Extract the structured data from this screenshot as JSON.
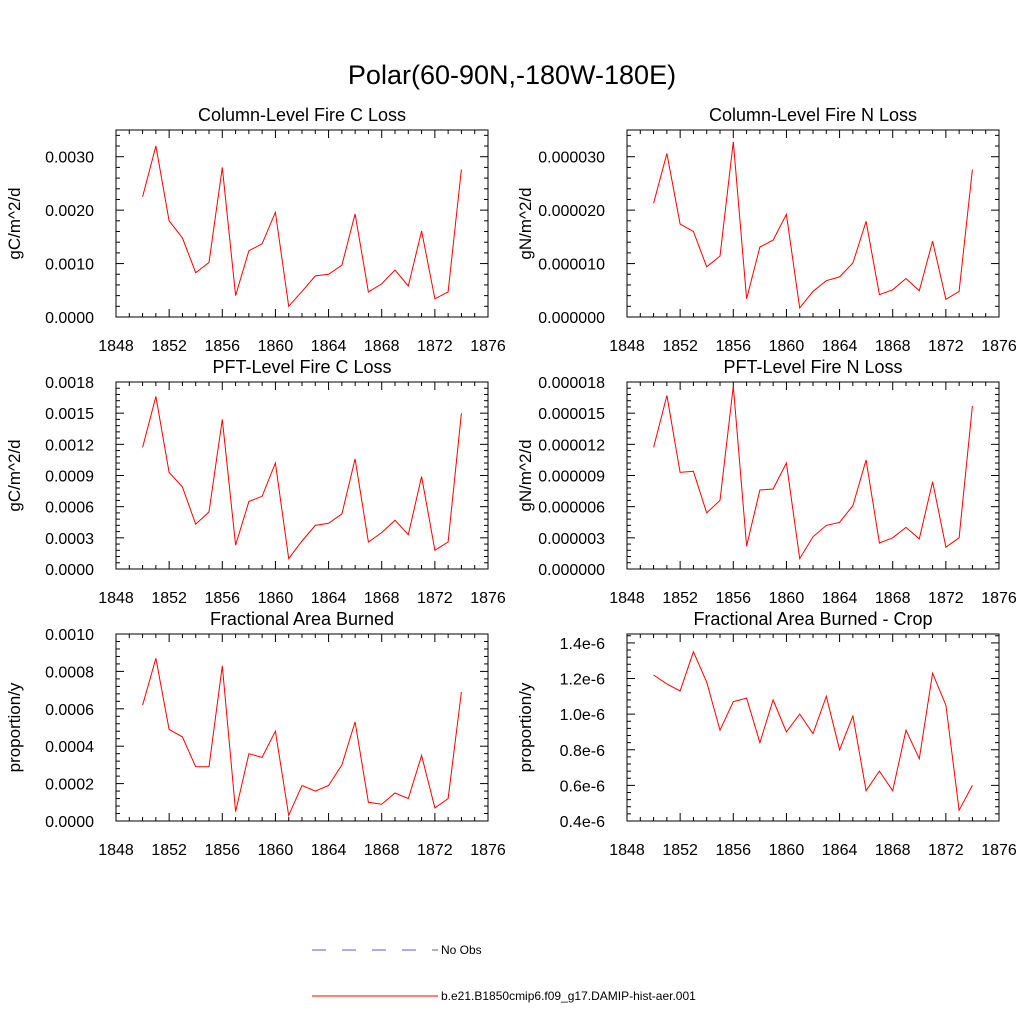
{
  "figure": {
    "title": "Polar(60-90N,-180W-180E)"
  },
  "legend": [
    {
      "label": "No Obs",
      "color": "#5b5bd6",
      "dash": true
    },
    {
      "label": "b.e21.B1850cmip6.f09_g17.DAMIP-hist-aer.001",
      "color": "#ff0000",
      "dash": false
    }
  ],
  "chart_data": [
    {
      "type": "line",
      "title": "Column-Level Fire C Loss",
      "ylabel": "gC/m^2/d",
      "xlim": [
        1848,
        1876
      ],
      "xticks": [
        1848,
        1852,
        1856,
        1860,
        1864,
        1868,
        1872,
        1876
      ],
      "xtick_labels": [
        "1848",
        "1852",
        "1856",
        "1860",
        "1864",
        "1868",
        "1872",
        "1876"
      ],
      "ylim": [
        0,
        0.0035
      ],
      "yticks": [
        0,
        0.001,
        0.002,
        0.003
      ],
      "ytick_labels": [
        "0.0000",
        "0.0010",
        "0.0020",
        "0.0030"
      ],
      "x": [
        1850,
        1851,
        1852,
        1853,
        1854,
        1855,
        1856,
        1857,
        1858,
        1859,
        1860,
        1861,
        1862,
        1863,
        1864,
        1865,
        1866,
        1867,
        1868,
        1869,
        1870,
        1871,
        1872,
        1873,
        1874
      ],
      "series": [
        {
          "color": "#ff0000",
          "values": [
            0.00225,
            0.0032,
            0.0018,
            0.00148,
            0.00083,
            0.00102,
            0.0028,
            0.0004,
            0.00124,
            0.00137,
            0.00196,
            0.0002,
            0.00048,
            0.00077,
            0.0008,
            0.00097,
            0.00193,
            0.00047,
            0.00062,
            0.00088,
            0.00058,
            0.00161,
            0.00034,
            0.00047,
            0.00276
          ]
        }
      ]
    },
    {
      "type": "line",
      "title": "Column-Level Fire N Loss",
      "ylabel": "gN/m^2/d",
      "xlim": [
        1848,
        1876
      ],
      "xticks": [
        1848,
        1852,
        1856,
        1860,
        1864,
        1868,
        1872,
        1876
      ],
      "xtick_labels": [
        "1848",
        "1852",
        "1856",
        "1860",
        "1864",
        "1868",
        "1872",
        "1876"
      ],
      "ylim": [
        0,
        3.5e-05
      ],
      "yticks": [
        0,
        1e-05,
        2e-05,
        3e-05
      ],
      "ytick_labels": [
        "0.000000",
        "0.000010",
        "0.000020",
        "0.000030"
      ],
      "x": [
        1850,
        1851,
        1852,
        1853,
        1854,
        1855,
        1856,
        1857,
        1858,
        1859,
        1860,
        1861,
        1862,
        1863,
        1864,
        1865,
        1866,
        1867,
        1868,
        1869,
        1870,
        1871,
        1872,
        1873,
        1874
      ],
      "series": [
        {
          "color": "#ff0000",
          "values": [
            2.13e-05,
            3.06e-05,
            1.74e-05,
            1.6e-05,
            9.4e-06,
            1.14e-05,
            3.28e-05,
            3.4e-06,
            1.31e-05,
            1.44e-05,
            1.92e-05,
            1.7e-06,
            4.8e-06,
            6.8e-06,
            7.5e-06,
            1.01e-05,
            1.79e-05,
            4.2e-06,
            5.1e-06,
            7.2e-06,
            4.9e-06,
            1.42e-05,
            3.3e-06,
            4.8e-06,
            2.76e-05
          ]
        }
      ]
    },
    {
      "type": "line",
      "title": "PFT-Level Fire C Loss",
      "ylabel": "gC/m^2/d",
      "xlim": [
        1848,
        1876
      ],
      "xticks": [
        1848,
        1852,
        1856,
        1860,
        1864,
        1868,
        1872,
        1876
      ],
      "xtick_labels": [
        "1848",
        "1852",
        "1856",
        "1860",
        "1864",
        "1868",
        "1872",
        "1876"
      ],
      "ylim": [
        0,
        0.0018
      ],
      "yticks": [
        0,
        0.0003,
        0.0006,
        0.0009,
        0.0012,
        0.0015,
        0.0018
      ],
      "ytick_labels": [
        "0.0000",
        "0.0003",
        "0.0006",
        "0.0009",
        "0.0012",
        "0.0015",
        "0.0018"
      ],
      "x": [
        1850,
        1851,
        1852,
        1853,
        1854,
        1855,
        1856,
        1857,
        1858,
        1859,
        1860,
        1861,
        1862,
        1863,
        1864,
        1865,
        1866,
        1867,
        1868,
        1869,
        1870,
        1871,
        1872,
        1873,
        1874
      ],
      "series": [
        {
          "color": "#ff0000",
          "values": [
            0.00117,
            0.00166,
            0.00093,
            0.00079,
            0.00043,
            0.00055,
            0.00144,
            0.00023,
            0.00065,
            0.0007,
            0.00102,
            0.0001,
            0.00027,
            0.00042,
            0.00044,
            0.00053,
            0.00106,
            0.00026,
            0.00035,
            0.00047,
            0.00033,
            0.00089,
            0.00018,
            0.00026,
            0.0015
          ]
        }
      ]
    },
    {
      "type": "line",
      "title": "PFT-Level Fire N Loss",
      "ylabel": "gN/m^2/d",
      "xlim": [
        1848,
        1876
      ],
      "xticks": [
        1848,
        1852,
        1856,
        1860,
        1864,
        1868,
        1872,
        1876
      ],
      "xtick_labels": [
        "1848",
        "1852",
        "1856",
        "1860",
        "1864",
        "1868",
        "1872",
        "1876"
      ],
      "ylim": [
        0,
        1.8e-05
      ],
      "yticks": [
        0,
        3e-06,
        6e-06,
        9e-06,
        1.2e-05,
        1.5e-05,
        1.8e-05
      ],
      "ytick_labels": [
        "0.000000",
        "0.000003",
        "0.000006",
        "0.000009",
        "0.000012",
        "0.000015",
        "0.000018"
      ],
      "x": [
        1850,
        1851,
        1852,
        1853,
        1854,
        1855,
        1856,
        1857,
        1858,
        1859,
        1860,
        1861,
        1862,
        1863,
        1864,
        1865,
        1866,
        1867,
        1868,
        1869,
        1870,
        1871,
        1872,
        1873,
        1874
      ],
      "series": [
        {
          "color": "#ff0000",
          "values": [
            1.17e-05,
            1.67e-05,
            9.3e-06,
            9.4e-06,
            5.4e-06,
            6.6e-06,
            1.76e-05,
            2.2e-06,
            7.6e-06,
            7.7e-06,
            1.02e-05,
            1e-06,
            3.1e-06,
            4.2e-06,
            4.5e-06,
            6.1e-06,
            1.05e-05,
            2.5e-06,
            3e-06,
            4e-06,
            2.9e-06,
            8.4e-06,
            2.1e-06,
            3e-06,
            1.57e-05
          ]
        }
      ]
    },
    {
      "type": "line",
      "title": "Fractional Area Burned",
      "ylabel": "proportion/y",
      "xlim": [
        1848,
        1876
      ],
      "xticks": [
        1848,
        1852,
        1856,
        1860,
        1864,
        1868,
        1872,
        1876
      ],
      "xtick_labels": [
        "1848",
        "1852",
        "1856",
        "1860",
        "1864",
        "1868",
        "1872",
        "1876"
      ],
      "ylim": [
        0,
        0.001
      ],
      "yticks": [
        0,
        0.0002,
        0.0004,
        0.0006,
        0.0008,
        0.001
      ],
      "ytick_labels": [
        "0.0000",
        "0.0002",
        "0.0004",
        "0.0006",
        "0.0008",
        "0.0010"
      ],
      "x": [
        1850,
        1851,
        1852,
        1853,
        1854,
        1855,
        1856,
        1857,
        1858,
        1859,
        1860,
        1861,
        1862,
        1863,
        1864,
        1865,
        1866,
        1867,
        1868,
        1869,
        1870,
        1871,
        1872,
        1873,
        1874
      ],
      "series": [
        {
          "color": "#ff0000",
          "values": [
            0.00062,
            0.00087,
            0.00049,
            0.00045,
            0.00029,
            0.00029,
            0.00083,
            5e-05,
            0.00036,
            0.00034,
            0.00048,
            3e-05,
            0.00019,
            0.00016,
            0.00019,
            0.0003,
            0.00053,
            0.0001,
            9e-05,
            0.00015,
            0.00012,
            0.00035,
            7e-05,
            0.00012,
            0.00069
          ]
        }
      ]
    },
    {
      "type": "line",
      "title": "Fractional Area Burned - Crop",
      "ylabel": "proportion/y",
      "xlim": [
        1848,
        1876
      ],
      "xticks": [
        1848,
        1852,
        1856,
        1860,
        1864,
        1868,
        1872,
        1876
      ],
      "xtick_labels": [
        "1848",
        "1852",
        "1856",
        "1860",
        "1864",
        "1868",
        "1872",
        "1876"
      ],
      "ylim": [
        4e-07,
        1.45e-06
      ],
      "yticks": [
        4e-07,
        6e-07,
        8e-07,
        1e-06,
        1.2e-06,
        1.4e-06
      ],
      "ytick_labels": [
        "0.4e-6",
        "0.6e-6",
        "0.8e-6",
        "1.0e-6",
        "1.2e-6",
        "1.4e-6"
      ],
      "x": [
        1850,
        1851,
        1852,
        1853,
        1854,
        1855,
        1856,
        1857,
        1858,
        1859,
        1860,
        1861,
        1862,
        1863,
        1864,
        1865,
        1866,
        1867,
        1868,
        1869,
        1870,
        1871,
        1872,
        1873,
        1874
      ],
      "series": [
        {
          "color": "#ff0000",
          "values": [
            1.22e-06,
            1.17e-06,
            1.13e-06,
            1.35e-06,
            1.18e-06,
            9.1e-07,
            1.07e-06,
            1.09e-06,
            8.4e-07,
            1.08e-06,
            9e-07,
            1e-06,
            8.9e-07,
            1.1e-06,
            8e-07,
            9.9e-07,
            5.7e-07,
            6.8e-07,
            5.7e-07,
            9.1e-07,
            7.5e-07,
            1.23e-06,
            1.05e-06,
            4.6e-07,
            6e-07
          ]
        }
      ]
    }
  ]
}
